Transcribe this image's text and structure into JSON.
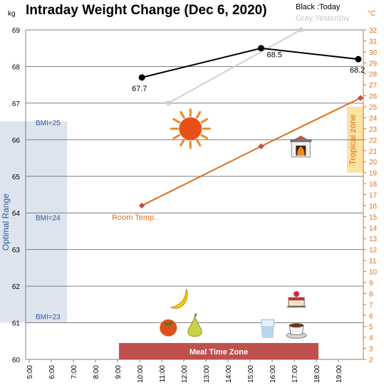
{
  "chart_data": {
    "type": "line",
    "title": "Intraday Weight Change (Dec 6, 2020)",
    "y_left": {
      "label": "kg",
      "min": 60,
      "max": 69,
      "ticks": [
        60,
        61,
        62,
        63,
        64,
        65,
        66,
        67,
        68,
        69
      ]
    },
    "y_right": {
      "label": "°C",
      "min": 2,
      "max": 32,
      "ticks": [
        2,
        3,
        4,
        5,
        6,
        7,
        8,
        9,
        10,
        11,
        12,
        13,
        14,
        15,
        16,
        17,
        18,
        19,
        20,
        21,
        22,
        23,
        24,
        25,
        26,
        27,
        28,
        29,
        30,
        31,
        32
      ]
    },
    "x": {
      "min": 5,
      "max": 20,
      "tick_labels": [
        "5:00",
        "6:00",
        "7:00",
        "8:00",
        "9:00",
        "10:00",
        "11:00",
        "12:00",
        "13:00",
        "14:00",
        "15:00",
        "16:00",
        "17:00",
        "18:00",
        "19:00"
      ]
    },
    "legend": {
      "today": "Black :Today",
      "yesterday": "Gray:Yesterday"
    },
    "series": [
      {
        "name": "Today",
        "color": "#000000",
        "x": [
          10.1,
          15.5,
          19.9
        ],
        "y": [
          67.7,
          68.5,
          68.2
        ],
        "labels": [
          "67.7",
          "68.5",
          "68.2"
        ]
      },
      {
        "name": "Yesterday",
        "color": "#d0d0d0",
        "x": [
          11.3,
          17.3
        ],
        "y": [
          67.0,
          69.0
        ]
      },
      {
        "name": "Room Temp.",
        "color": "#e0701a",
        "axis": "right",
        "x": [
          10.1,
          15.5,
          20.0
        ],
        "y": [
          16.0,
          21.4,
          25.8
        ]
      }
    ],
    "bands": {
      "optimal": {
        "label": "Optimal Range",
        "color": "#dce3ec",
        "kg_from": 61.0,
        "kg_to": 66.5
      },
      "tropical": {
        "label": "Tropical zone",
        "color": "#fbe2a2",
        "c_from": 19,
        "c_to": 25
      },
      "meal": {
        "label": "Meal Time Zone",
        "color": "#c0504d",
        "from": 9.0,
        "to": 18.0
      }
    },
    "bmi": [
      {
        "label": "BMI=25",
        "kg": 66.4
      },
      {
        "label": "BMI=24",
        "kg": 63.8
      },
      {
        "label": "BMI=23",
        "kg": 61.1
      }
    ],
    "icons": [
      {
        "name": "sun-icon",
        "time": 12.3,
        "kg": 66.3
      },
      {
        "name": "fireplace-icon",
        "time": 17.3,
        "kg": 65.8
      },
      {
        "name": "banana-icon",
        "time": 11.8,
        "kg": 61.65
      },
      {
        "name": "cake-icon",
        "time": 17.1,
        "kg": 61.65
      },
      {
        "name": "persimmon-icon",
        "time": 11.3,
        "kg": 60.9
      },
      {
        "name": "pear-icon",
        "time": 12.5,
        "kg": 60.9
      },
      {
        "name": "water-glass-icon",
        "time": 15.8,
        "kg": 60.85
      },
      {
        "name": "coffee-icon",
        "time": 17.1,
        "kg": 60.85
      }
    ]
  }
}
